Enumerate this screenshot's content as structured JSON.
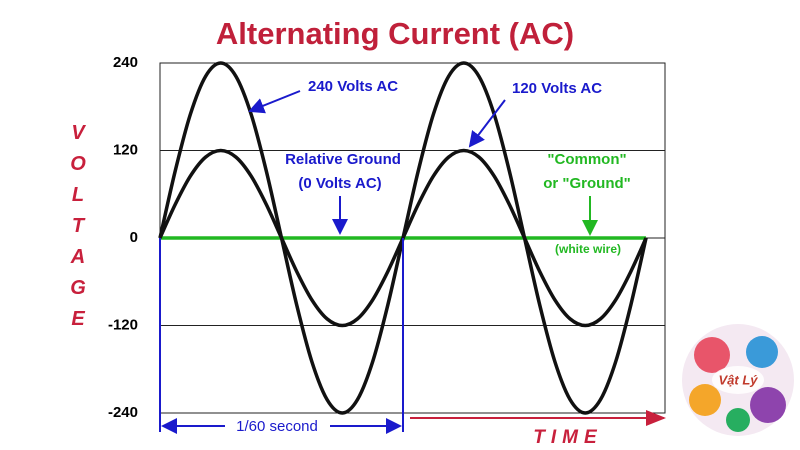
{
  "chart_data": {
    "type": "line",
    "title": "Alternating Current (AC)",
    "y_label": "VOLTAGE",
    "x_label": "TIME",
    "x": [
      0,
      0.0625,
      0.125,
      0.1875,
      0.25,
      0.3125,
      0.375,
      0.4375,
      0.5,
      0.5625,
      0.625,
      0.6875,
      0.75,
      0.8125,
      0.875,
      0.9375,
      1,
      1.0625,
      1.125,
      1.1875,
      1.25,
      1.3125,
      1.375,
      1.4375,
      1.5,
      1.5625,
      1.625,
      1.6875,
      1.75,
      1.8125,
      1.875,
      1.9375,
      2
    ],
    "xlim": [
      0,
      2.078
    ],
    "ylim": [
      -240,
      240
    ],
    "yticks": [
      240,
      120,
      0,
      -120,
      -240
    ],
    "grid": true,
    "series": [
      {
        "name": "240 Volts AC",
        "color": "#111111",
        "values": [
          0,
          91.8,
          169.7,
          221.7,
          240,
          221.7,
          169.7,
          91.8,
          0,
          -91.8,
          -169.7,
          -221.7,
          -240,
          -221.7,
          -169.7,
          -91.8,
          0,
          91.8,
          169.7,
          221.7,
          240,
          221.7,
          169.7,
          91.8,
          0,
          -91.8,
          -169.7,
          -221.7,
          -240,
          -221.7,
          -169.7,
          -91.8,
          0
        ]
      },
      {
        "name": "120 Volts AC",
        "color": "#111111",
        "values": [
          0,
          45.9,
          84.9,
          110.9,
          120,
          110.9,
          84.9,
          45.9,
          0,
          -45.9,
          -84.9,
          -110.9,
          -120,
          -110.9,
          -84.9,
          -45.9,
          0,
          45.9,
          84.9,
          110.9,
          120,
          110.9,
          84.9,
          45.9,
          0,
          -45.9,
          -84.9,
          -110.9,
          -120,
          -110.9,
          -84.9,
          -45.9,
          0
        ]
      },
      {
        "name": "Relative Ground",
        "color": "#22b822",
        "values": [
          0,
          0,
          0,
          0,
          0,
          0,
          0,
          0,
          0,
          0,
          0,
          0,
          0,
          0,
          0,
          0,
          0,
          0,
          0,
          0,
          0,
          0,
          0,
          0,
          0,
          0,
          0,
          0,
          0,
          0,
          0,
          0,
          0
        ]
      }
    ],
    "annotations": [
      "(0 Volts AC)",
      "\"Common\"",
      "or \"Ground\"",
      "(white wire)",
      "1/60 second"
    ],
    "logo": "Vật Lý"
  }
}
